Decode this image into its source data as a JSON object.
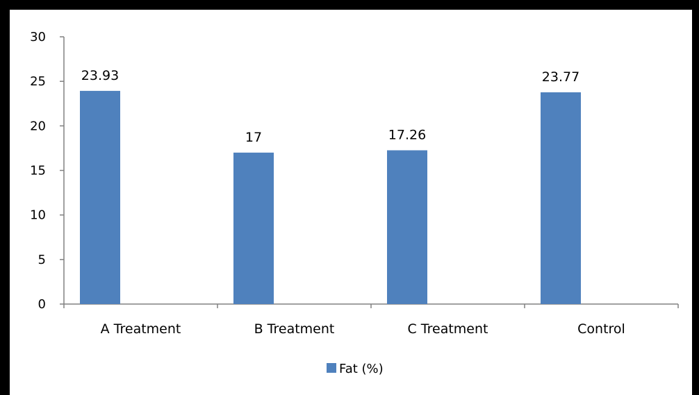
{
  "chart_data": {
    "type": "bar",
    "categories": [
      "A Treatment",
      "B Treatment",
      "C Treatment",
      "Control"
    ],
    "series": [
      {
        "name": "Fat (%)",
        "values": [
          23.93,
          17,
          17.26,
          23.77
        ],
        "data_labels": [
          "23.93",
          "17",
          "17.26",
          "23.77"
        ],
        "color": "#4F81BD"
      }
    ],
    "y_ticks": [
      "0",
      "5",
      "10",
      "15",
      "20",
      "25",
      "30"
    ],
    "ylim": [
      0,
      30
    ],
    "grid": false,
    "legend_position": "bottom"
  },
  "colors": {
    "bar": "#4F81BD",
    "frame": "#000000",
    "plot_background": "#FFFFFF",
    "axis": "#808080"
  }
}
